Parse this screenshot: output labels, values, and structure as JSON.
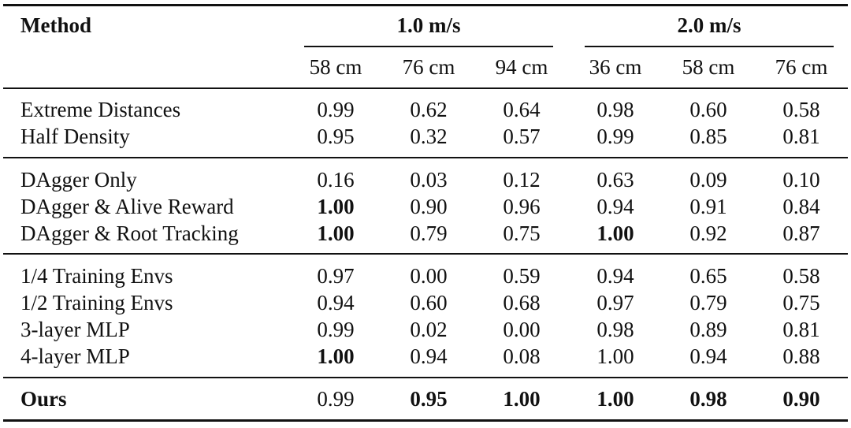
{
  "table": {
    "header": {
      "method_label": "Method",
      "group1": "1.0 m/s",
      "group2": "2.0 m/s",
      "columns": [
        "58 cm",
        "76 cm",
        "94 cm",
        "36 cm",
        "58 cm",
        "76 cm"
      ]
    },
    "sections": [
      {
        "rows": [
          {
            "label": "Extreme Distances",
            "values": [
              "0.99",
              "0.62",
              "0.64",
              "0.98",
              "0.60",
              "0.58"
            ],
            "bold": [
              false,
              false,
              false,
              false,
              false,
              false
            ]
          },
          {
            "label": "Half Density",
            "values": [
              "0.95",
              "0.32",
              "0.57",
              "0.99",
              "0.85",
              "0.81"
            ],
            "bold": [
              false,
              false,
              false,
              false,
              false,
              false
            ]
          }
        ]
      },
      {
        "rows": [
          {
            "label": "DAgger Only",
            "values": [
              "0.16",
              "0.03",
              "0.12",
              "0.63",
              "0.09",
              "0.10"
            ],
            "bold": [
              false,
              false,
              false,
              false,
              false,
              false
            ]
          },
          {
            "label": "DAgger & Alive Reward",
            "values": [
              "1.00",
              "0.90",
              "0.96",
              "0.94",
              "0.91",
              "0.84"
            ],
            "bold": [
              true,
              false,
              false,
              false,
              false,
              false
            ]
          },
          {
            "label": "DAgger & Root Tracking",
            "values": [
              "1.00",
              "0.79",
              "0.75",
              "1.00",
              "0.92",
              "0.87"
            ],
            "bold": [
              true,
              false,
              false,
              true,
              false,
              false
            ]
          }
        ]
      },
      {
        "rows": [
          {
            "label": "1/4 Training Envs",
            "values": [
              "0.97",
              "0.00",
              "0.59",
              "0.94",
              "0.65",
              "0.58"
            ],
            "bold": [
              false,
              false,
              false,
              false,
              false,
              false
            ]
          },
          {
            "label": "1/2 Training Envs",
            "values": [
              "0.94",
              "0.60",
              "0.68",
              "0.97",
              "0.79",
              "0.75"
            ],
            "bold": [
              false,
              false,
              false,
              false,
              false,
              false
            ]
          },
          {
            "label": "3-layer MLP",
            "values": [
              "0.99",
              "0.02",
              "0.00",
              "0.98",
              "0.89",
              "0.81"
            ],
            "bold": [
              false,
              false,
              false,
              false,
              false,
              false
            ]
          },
          {
            "label": "4-layer MLP",
            "values": [
              "1.00",
              "0.94",
              "0.08",
              "1.00",
              "0.94",
              "0.88"
            ],
            "bold": [
              true,
              false,
              false,
              false,
              false,
              false
            ]
          }
        ]
      },
      {
        "rows": [
          {
            "label": "Ours",
            "values": [
              "0.99",
              "0.95",
              "1.00",
              "1.00",
              "0.98",
              "0.90"
            ],
            "bold": [
              false,
              true,
              true,
              true,
              true,
              true
            ],
            "label_bold": true
          }
        ]
      }
    ]
  }
}
